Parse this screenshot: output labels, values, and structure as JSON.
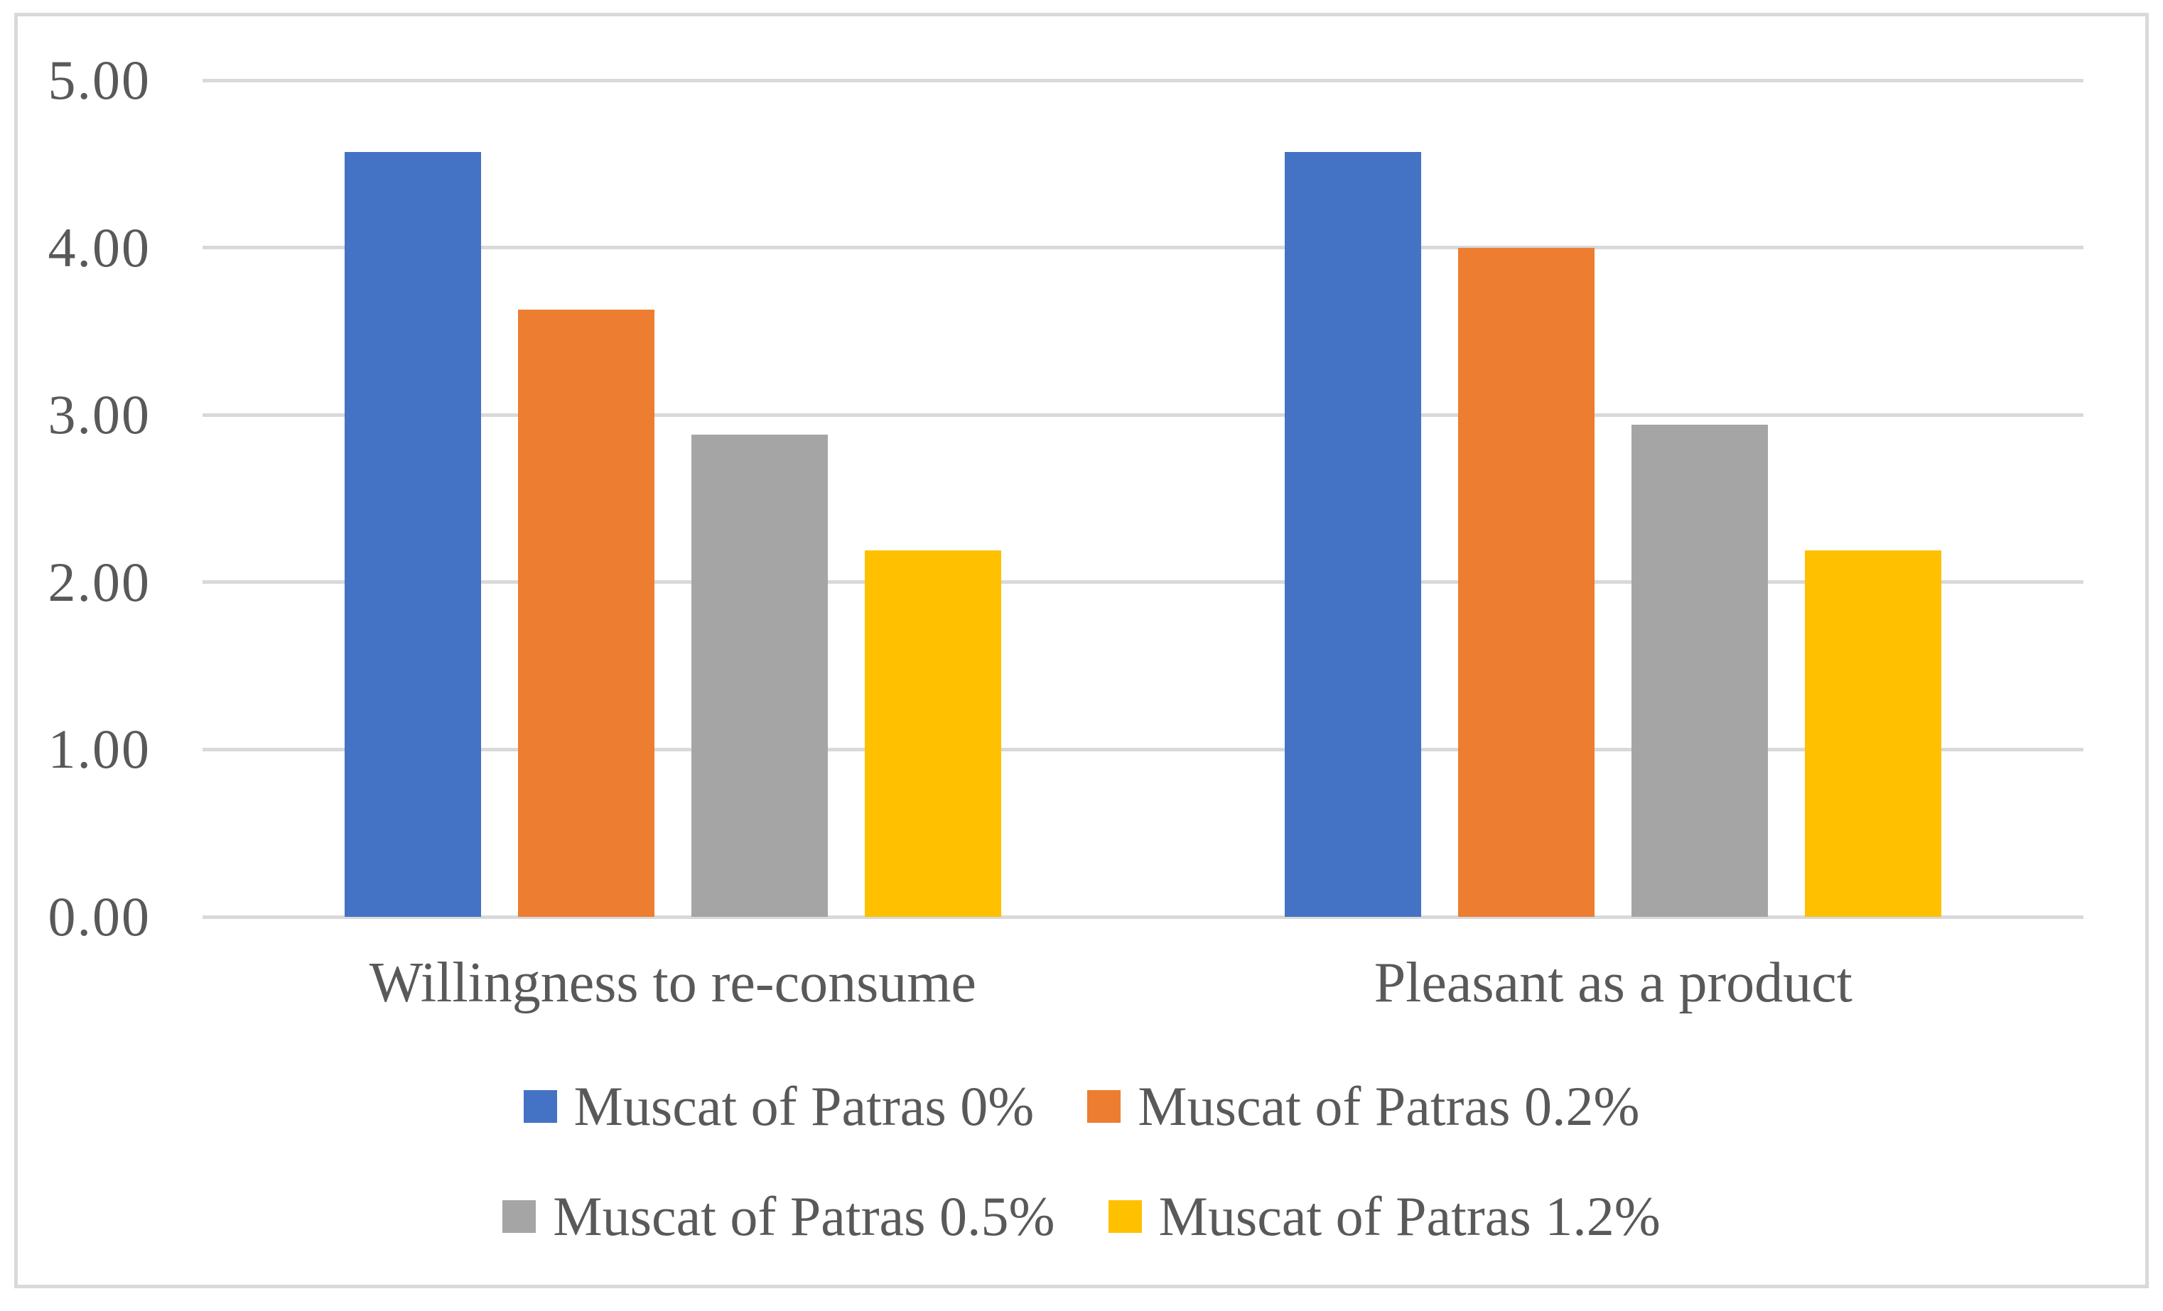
{
  "figure": {
    "background": "#FFFFFF",
    "border_color": "#D9D9D9",
    "gridline_color": "#D9D9D9",
    "text_color": "#595959"
  },
  "chart_data": {
    "type": "bar",
    "title": "",
    "xlabel": "",
    "ylabel": "",
    "categories": [
      "Willingness to re-consume",
      "Pleasant as a product"
    ],
    "series": [
      {
        "name": "Muscat of Patras 0%",
        "color": "#4472C4",
        "values": [
          4.57,
          4.57
        ]
      },
      {
        "name": "Muscat of Patras 0.2%",
        "color": "#ED7D31",
        "values": [
          3.63,
          4.0
        ]
      },
      {
        "name": "Muscat of Patras 0.5%",
        "color": "#A5A5A5",
        "values": [
          2.88,
          2.94
        ]
      },
      {
        "name": "Muscat of Patras 1.2%",
        "color": "#FFC000",
        "values": [
          2.19,
          2.19
        ]
      }
    ],
    "yticks": [
      "5.00",
      "4.00",
      "3.00",
      "2.00",
      "1.00",
      "0.00"
    ],
    "ylim": [
      0,
      5
    ],
    "grid": true,
    "legend_position": "bottom",
    "legend_rows": [
      [
        0,
        1
      ],
      [
        2,
        3
      ]
    ]
  }
}
